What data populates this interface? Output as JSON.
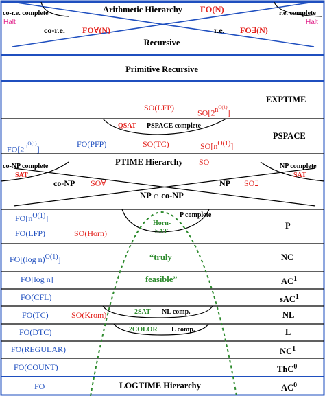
{
  "colors": {
    "outer_border": "#1f4fbf",
    "line": "#000000",
    "red": "#e3211c",
    "blue": "#1f4fbf",
    "green": "#2e8b2e",
    "pink": "#e0218a"
  },
  "top": {
    "arithmetic_hierarchy": "Arithmetic Hierarchy",
    "fo_n": "FO(N)",
    "co_re_complete": "co-r.e. complete",
    "halt_left": "Halt",
    "re_complete": "r.e. complete",
    "halt_right": "Halt",
    "co_re": "co-r.e.",
    "fo_forall_n": "FO∀(N)",
    "re": "r.e.",
    "fo_exists_n": "FO∃(N)",
    "recursive": "Recursive"
  },
  "bands": {
    "primitive_recursive": "Primitive Recursive",
    "exptime": "EXPTIME",
    "so_lfp": "SO(LFP)",
    "so_2n_base": "SO[2",
    "so_2n_sup": "n",
    "so_2n_supsup": "O(1)",
    "so_2n_end": "]",
    "qsat": "QSAT",
    "pspace_complete": "PSPACE complete",
    "pspace": "PSPACE",
    "fo_2n_base": "FO[2",
    "fo_2n_sup": "n",
    "fo_2n_supsup": "O(1)",
    "fo_2n_end": "]",
    "fo_pfp": "FO(PFP)",
    "so_tc": "SO(TC)",
    "so_n_base": "SO[n",
    "so_n_sup": "O(1)",
    "so_n_end": "]",
    "ptime_hierarchy": "PTIME Hierarchy",
    "so": "SO",
    "co_np_complete": "co-NP complete",
    "sat_left": "SAT",
    "np_complete": "NP complete",
    "sat_right": "SAT",
    "co_np": "co-NP",
    "so_forall": "SO∀",
    "np": "NP",
    "so_exists": "SO∃",
    "np_cap_conp": "NP ∩ co-NP",
    "fo_n_base": "FO[n",
    "fo_n_sup": "O(1)",
    "fo_n_end": "]",
    "p_complete": "P complete",
    "horn_sat_1": "Horn-",
    "horn_sat_2": "SAT",
    "p": "P",
    "fo_lfp": "FO(LFP)",
    "so_horn": "SO(Horn)",
    "fo_logn_base": "FO[(log n)",
    "fo_logn_sup": "O(1)",
    "fo_logn_end": "]",
    "truly": "“truly",
    "nc": "NC",
    "fo_log_n": "FO[log n]",
    "feasible": "feasible”",
    "ac1_base": "AC",
    "ac1_sup": "1",
    "fo_cfl": "FO(CFL)",
    "sac1_base": "sAC",
    "sac1_sup": "1",
    "fo_tc": "FO(TC)",
    "so_krom": "SO(Krom)",
    "two_sat": "2SAT",
    "nl_comp": "NL comp.",
    "nl": "NL",
    "fo_dtc": "FO(DTC)",
    "two_color": "2COLOR",
    "l_comp": "L comp.",
    "l": "L",
    "fo_regular": "FO(REGULAR)",
    "nc1_base": "NC",
    "nc1_sup": "1",
    "fo_count": "FO(COUNT)",
    "thc0_base": "ThC",
    "thc0_sup": "0",
    "fo": "FO",
    "logtime_hierarchy": "LOGTIME Hierarchy",
    "ac0_base": "AC",
    "ac0_sup": "0"
  }
}
